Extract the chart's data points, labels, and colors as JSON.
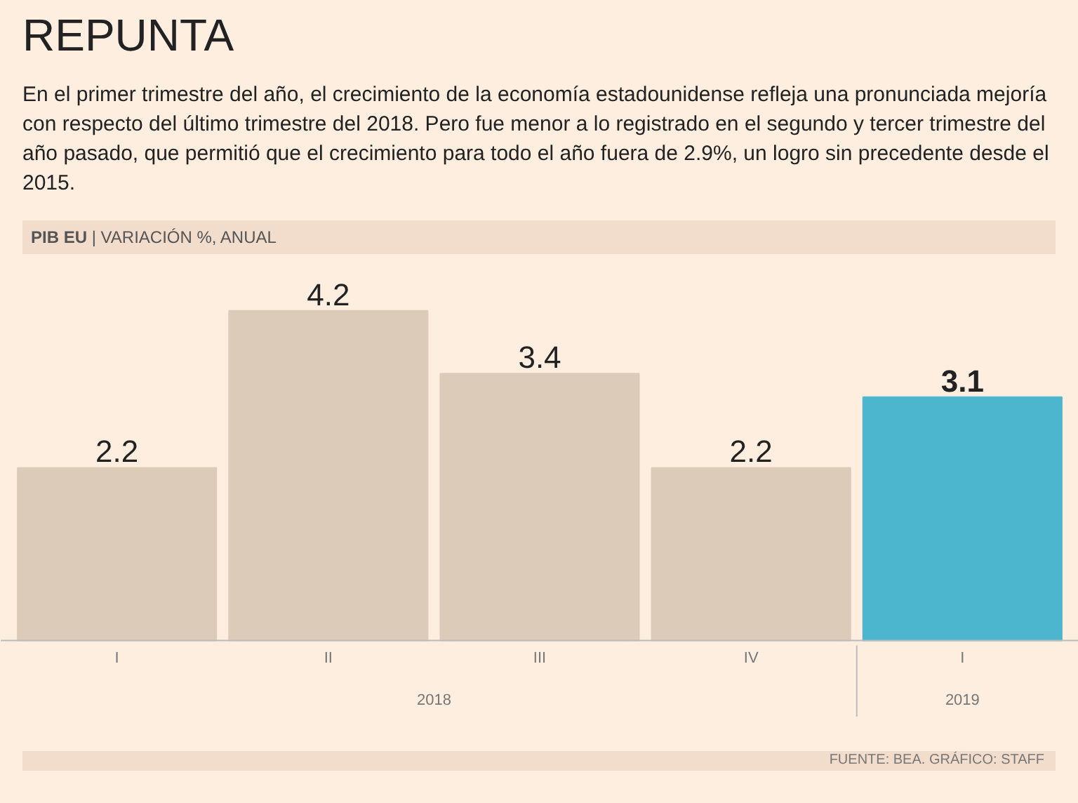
{
  "chart_data": {
    "type": "bar",
    "title": "REPUNTA",
    "subtitle": "En el primer trimestre del año, el crecimiento de la economía estadounidense refleja una pronunciada mejoría con respecto del último trimestre del 2018. Pero fue menor a lo registrado en el segundo y tercer trimestre del año pasado, que permitió que el crecimiento para todo el año fuera de 2.9%, un logro sin precedente desde el 2015.",
    "ylabel": "PIB EU | VARIACIÓN %, ANUAL",
    "categories": [
      "I",
      "II",
      "III",
      "IV",
      "I"
    ],
    "values": [
      2.2,
      4.2,
      3.4,
      2.2,
      3.1
    ],
    "colors": [
      "#dccbb9",
      "#dccbb9",
      "#dccbb9",
      "#dccbb9",
      "#4db6cf"
    ],
    "data_labels": true,
    "grid": false,
    "annotations": [
      "2018",
      "2019",
      "FUENTE: BEA. GRÁFICO: STAFF"
    ]
  }
}
